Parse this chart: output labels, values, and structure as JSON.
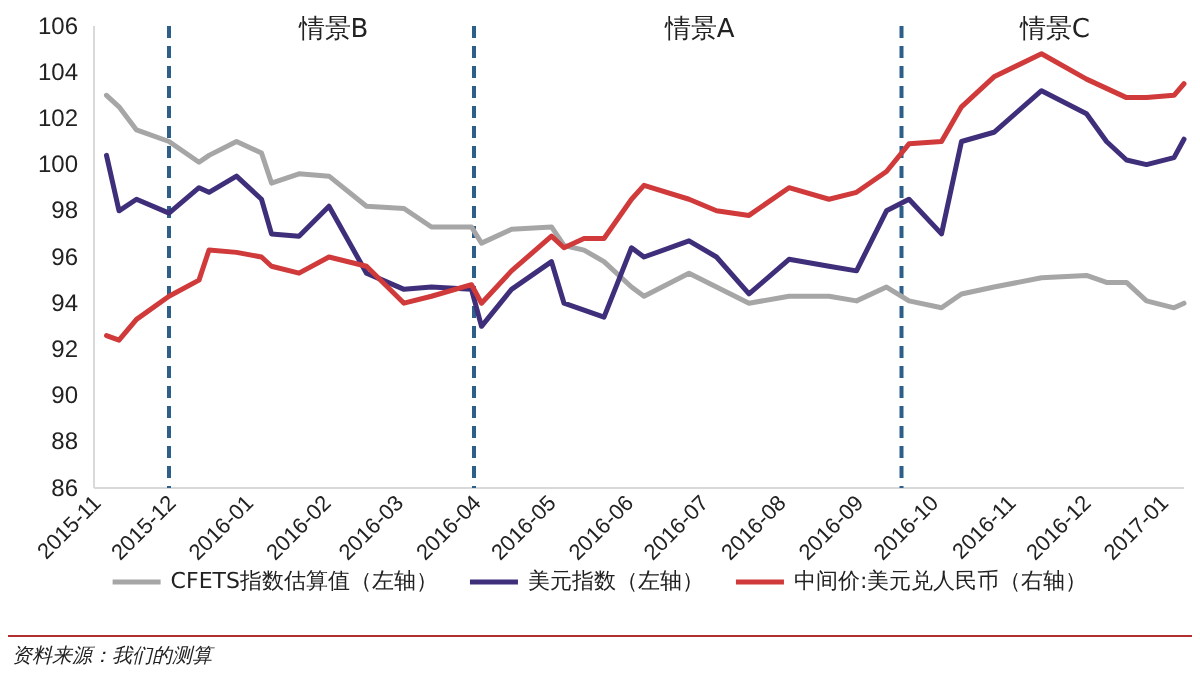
{
  "chart_data": {
    "type": "line",
    "x": [
      "2015-11-06",
      "2015-11-11",
      "2015-11-18",
      "2015-12-01",
      "2015-12-13",
      "2015-12-17",
      "2015-12-28",
      "2016-01-07",
      "2016-01-11",
      "2016-01-22",
      "2016-02-03",
      "2016-02-18",
      "2016-03-04",
      "2016-03-15",
      "2016-03-31",
      "2016-04-04",
      "2016-04-16",
      "2016-05-02",
      "2016-05-07",
      "2016-05-15",
      "2016-05-23",
      "2016-06-03",
      "2016-06-08",
      "2016-06-26",
      "2016-07-07",
      "2016-07-20",
      "2016-08-05",
      "2016-08-21",
      "2016-09-01",
      "2016-09-13",
      "2016-09-22",
      "2016-10-05",
      "2016-10-13",
      "2016-10-26",
      "2016-11-14",
      "2016-12-02",
      "2016-12-10",
      "2016-12-18",
      "2016-12-26",
      "2017-01-06",
      "2017-01-10"
    ],
    "series": [
      {
        "name": "CFETS指数估算值（左轴）",
        "color": "#a6a6a6",
        "values": [
          103.0,
          102.5,
          101.5,
          101.0,
          100.1,
          100.4,
          101.0,
          100.5,
          99.2,
          99.6,
          99.5,
          98.2,
          98.1,
          97.3,
          97.3,
          96.6,
          97.2,
          97.3,
          96.5,
          96.3,
          95.8,
          94.7,
          94.3,
          95.3,
          94.7,
          94.0,
          94.3,
          94.3,
          94.1,
          94.7,
          94.1,
          93.8,
          94.4,
          94.7,
          95.1,
          95.2,
          94.9,
          94.9,
          94.1,
          93.8,
          94.0
        ]
      },
      {
        "name": "美元指数（左轴）",
        "color": "#3f2e7a",
        "values": [
          100.4,
          98.0,
          98.5,
          97.9,
          99.0,
          98.8,
          99.5,
          98.5,
          97.0,
          96.9,
          98.2,
          95.3,
          94.6,
          94.7,
          94.6,
          93.0,
          94.6,
          95.8,
          94.0,
          93.7,
          93.4,
          96.4,
          96.0,
          96.7,
          96.0,
          94.4,
          95.9,
          95.6,
          95.4,
          98.0,
          98.5,
          97.0,
          101.0,
          101.4,
          103.2,
          102.2,
          101.0,
          100.2,
          100.0,
          100.3,
          101.1
        ]
      },
      {
        "name": "中间价:美元兑人民币（右轴）",
        "color": "#d03a3a",
        "values": [
          92.6,
          92.4,
          93.3,
          94.3,
          95.0,
          96.3,
          96.2,
          96.0,
          95.6,
          95.3,
          96.0,
          95.6,
          94.0,
          94.3,
          94.8,
          94.0,
          95.4,
          96.9,
          96.4,
          96.8,
          96.8,
          98.5,
          99.1,
          98.5,
          98.0,
          97.8,
          99.0,
          98.5,
          98.8,
          99.7,
          100.9,
          101.0,
          102.5,
          103.8,
          104.8,
          103.7,
          103.3,
          102.9,
          102.9,
          103.0,
          103.5
        ]
      }
    ],
    "xlim": [
      "2015-11-01",
      "2017-01-10"
    ],
    "xticks": [
      "2015-11",
      "2015-12",
      "2016-01",
      "2016-02",
      "2016-03",
      "2016-04",
      "2016-05",
      "2016-06",
      "2016-07",
      "2016-08",
      "2016-09",
      "2016-10",
      "2016-11",
      "2016-12",
      "2017-01"
    ],
    "ylim": [
      86,
      106
    ],
    "yticks": [
      86,
      88,
      90,
      92,
      94,
      96,
      98,
      100,
      102,
      104,
      106
    ],
    "ref_lines": [
      {
        "axis": "x",
        "value": "2015-12-01",
        "color": "#2e5f8a",
        "line_style": "dashed"
      },
      {
        "axis": "x",
        "value": "2016-04-01",
        "color": "#2e5f8a",
        "line_style": "dashed"
      },
      {
        "axis": "x",
        "value": "2016-09-19",
        "color": "#2e5f8a",
        "line_style": "dashed"
      }
    ],
    "annotations": [
      "情景B",
      "情景A",
      "情景C",
      "资料来源：我们的测算"
    ],
    "grid": false,
    "legend": "bottom",
    "marker": "none",
    "line_style": "solid"
  }
}
